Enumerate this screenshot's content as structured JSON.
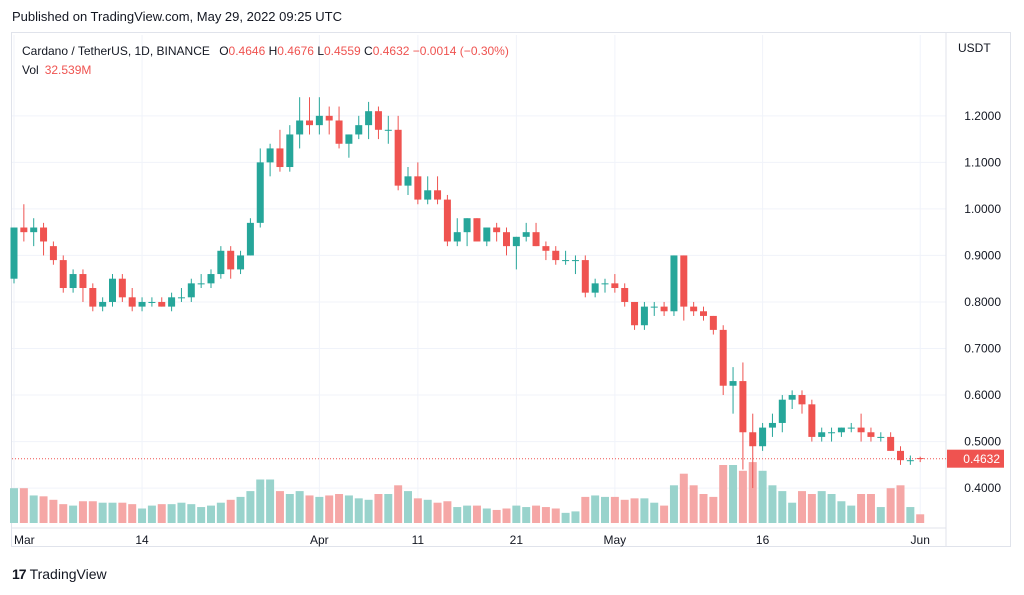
{
  "header": {
    "published": "Published on TradingView.com, May 29, 2022 09:25 UTC"
  },
  "legend": {
    "symbol": "Cardano / TetherUS, 1D, BINANCE",
    "o_label": "O",
    "o_value": "0.4646",
    "h_label": "H",
    "h_value": "0.4676",
    "l_label": "L",
    "l_value": "0.4559",
    "c_label": "C",
    "c_value": "0.4632",
    "change": "−0.0014 (−0.30%)",
    "vol_label": "Vol",
    "vol_value": "32.539M"
  },
  "footer": {
    "brand": "TradingView",
    "logo_text": "17"
  },
  "colors": {
    "up": "#26a69a",
    "down": "#ef5350",
    "vol_up": "#99d3cc",
    "vol_down": "#f5a7a6",
    "grid": "#f0f3fa",
    "last_price_bg": "#ef5350"
  },
  "chart_data": {
    "type": "candlestick",
    "title": "Cardano / TetherUS, 1D, BINANCE",
    "ylabel": "USDT",
    "y_ticks": [
      "0.4000",
      "0.5000",
      "0.6000",
      "0.7000",
      "0.8000",
      "0.9000",
      "1.0000",
      "1.1000",
      "1.2000"
    ],
    "ylim": [
      0.325,
      1.32
    ],
    "x_ticks": [
      {
        "label": "Mar",
        "date": "2022-03-01"
      },
      {
        "label": "14",
        "date": "2022-03-14"
      },
      {
        "label": "Apr",
        "date": "2022-04-01"
      },
      {
        "label": "11",
        "date": "2022-04-11"
      },
      {
        "label": "21",
        "date": "2022-04-21"
      },
      {
        "label": "May",
        "date": "2022-05-01"
      },
      {
        "label": "16",
        "date": "2022-05-16"
      },
      {
        "label": "Jun",
        "date": "2022-06-01"
      }
    ],
    "last_price": "0.4632",
    "start_date": "2022-03-01",
    "candles": [
      [
        0.85,
        0.96,
        0.84,
        0.96,
        1.2
      ],
      [
        0.96,
        1.01,
        0.93,
        0.95,
        1.2
      ],
      [
        0.95,
        0.98,
        0.92,
        0.96,
        0.95
      ],
      [
        0.96,
        0.97,
        0.9,
        0.93,
        0.92
      ],
      [
        0.92,
        0.93,
        0.88,
        0.89,
        0.8
      ],
      [
        0.89,
        0.9,
        0.82,
        0.83,
        0.65
      ],
      [
        0.83,
        0.87,
        0.82,
        0.86,
        0.6
      ],
      [
        0.86,
        0.87,
        0.8,
        0.83,
        0.75
      ],
      [
        0.83,
        0.84,
        0.78,
        0.79,
        0.75
      ],
      [
        0.79,
        0.81,
        0.78,
        0.8,
        0.7
      ],
      [
        0.8,
        0.86,
        0.79,
        0.85,
        0.7
      ],
      [
        0.85,
        0.86,
        0.8,
        0.81,
        0.7
      ],
      [
        0.81,
        0.83,
        0.78,
        0.79,
        0.65
      ],
      [
        0.79,
        0.81,
        0.78,
        0.8,
        0.5
      ],
      [
        0.8,
        0.81,
        0.79,
        0.8,
        0.6
      ],
      [
        0.8,
        0.81,
        0.79,
        0.79,
        0.65
      ],
      [
        0.79,
        0.82,
        0.78,
        0.81,
        0.65
      ],
      [
        0.81,
        0.83,
        0.8,
        0.81,
        0.7
      ],
      [
        0.81,
        0.85,
        0.8,
        0.84,
        0.65
      ],
      [
        0.84,
        0.86,
        0.83,
        0.84,
        0.55
      ],
      [
        0.84,
        0.87,
        0.83,
        0.86,
        0.6
      ],
      [
        0.86,
        0.92,
        0.85,
        0.91,
        0.7
      ],
      [
        0.91,
        0.92,
        0.85,
        0.87,
        0.8
      ],
      [
        0.87,
        0.91,
        0.86,
        0.9,
        0.9
      ],
      [
        0.9,
        0.98,
        0.9,
        0.97,
        1.1
      ],
      [
        0.97,
        1.13,
        0.96,
        1.1,
        1.5
      ],
      [
        1.1,
        1.14,
        1.07,
        1.13,
        1.5
      ],
      [
        1.13,
        1.17,
        1.08,
        1.09,
        1.1
      ],
      [
        1.09,
        1.18,
        1.08,
        1.16,
        1.0
      ],
      [
        1.16,
        1.24,
        1.13,
        1.19,
        1.1
      ],
      [
        1.19,
        1.24,
        1.16,
        1.18,
        0.95
      ],
      [
        1.18,
        1.24,
        1.16,
        1.2,
        0.9
      ],
      [
        1.2,
        1.22,
        1.16,
        1.19,
        0.95
      ],
      [
        1.19,
        1.22,
        1.13,
        1.14,
        1.0
      ],
      [
        1.14,
        1.16,
        1.11,
        1.16,
        0.95
      ],
      [
        1.16,
        1.2,
        1.15,
        1.18,
        0.85
      ],
      [
        1.18,
        1.23,
        1.15,
        1.21,
        0.8
      ],
      [
        1.21,
        1.22,
        1.15,
        1.17,
        1.0
      ],
      [
        1.17,
        1.2,
        1.14,
        1.17,
        1.0
      ],
      [
        1.17,
        1.2,
        1.04,
        1.05,
        1.3
      ],
      [
        1.05,
        1.09,
        1.03,
        1.07,
        1.1
      ],
      [
        1.07,
        1.1,
        1.01,
        1.02,
        0.85
      ],
      [
        1.02,
        1.07,
        1.01,
        1.04,
        0.8
      ],
      [
        1.04,
        1.07,
        1.01,
        1.02,
        0.7
      ],
      [
        1.02,
        1.03,
        0.92,
        0.93,
        0.75
      ],
      [
        0.93,
        0.98,
        0.92,
        0.95,
        0.55
      ],
      [
        0.95,
        0.98,
        0.92,
        0.98,
        0.6
      ],
      [
        0.98,
        0.98,
        0.93,
        0.93,
        0.6
      ],
      [
        0.93,
        0.96,
        0.92,
        0.96,
        0.5
      ],
      [
        0.96,
        0.97,
        0.93,
        0.95,
        0.45
      ],
      [
        0.95,
        0.96,
        0.9,
        0.92,
        0.5
      ],
      [
        0.92,
        0.94,
        0.87,
        0.94,
        0.6
      ],
      [
        0.94,
        0.97,
        0.93,
        0.95,
        0.55
      ],
      [
        0.95,
        0.97,
        0.92,
        0.92,
        0.6
      ],
      [
        0.92,
        0.93,
        0.89,
        0.91,
        0.55
      ],
      [
        0.91,
        0.92,
        0.88,
        0.89,
        0.5
      ],
      [
        0.89,
        0.91,
        0.88,
        0.89,
        0.35
      ],
      [
        0.89,
        0.9,
        0.86,
        0.89,
        0.4
      ],
      [
        0.89,
        0.9,
        0.81,
        0.82,
        0.9
      ],
      [
        0.82,
        0.85,
        0.81,
        0.84,
        0.95
      ],
      [
        0.84,
        0.85,
        0.82,
        0.84,
        0.9
      ],
      [
        0.84,
        0.86,
        0.82,
        0.83,
        0.9
      ],
      [
        0.83,
        0.84,
        0.79,
        0.8,
        0.8
      ],
      [
        0.8,
        0.8,
        0.74,
        0.75,
        0.85
      ],
      [
        0.75,
        0.8,
        0.74,
        0.79,
        0.85
      ],
      [
        0.79,
        0.8,
        0.77,
        0.79,
        0.7
      ],
      [
        0.79,
        0.8,
        0.77,
        0.78,
        0.6
      ],
      [
        0.78,
        0.9,
        0.77,
        0.9,
        1.3
      ],
      [
        0.9,
        0.9,
        0.76,
        0.79,
        1.7
      ],
      [
        0.79,
        0.8,
        0.77,
        0.78,
        1.3
      ],
      [
        0.78,
        0.79,
        0.76,
        0.77,
        1.0
      ],
      [
        0.77,
        0.77,
        0.73,
        0.74,
        0.9
      ],
      [
        0.74,
        0.75,
        0.6,
        0.62,
        2.0
      ],
      [
        0.62,
        0.66,
        0.56,
        0.63,
        2.0
      ],
      [
        0.63,
        0.67,
        0.44,
        0.52,
        1.8
      ],
      [
        0.52,
        0.56,
        0.4,
        0.49,
        2.1
      ],
      [
        0.49,
        0.54,
        0.48,
        0.53,
        1.8
      ],
      [
        0.53,
        0.56,
        0.51,
        0.54,
        1.3
      ],
      [
        0.54,
        0.6,
        0.52,
        0.59,
        1.1
      ],
      [
        0.59,
        0.61,
        0.57,
        0.6,
        0.7
      ],
      [
        0.6,
        0.61,
        0.56,
        0.58,
        1.1
      ],
      [
        0.58,
        0.59,
        0.5,
        0.51,
        1.0
      ],
      [
        0.51,
        0.53,
        0.5,
        0.52,
        1.1
      ],
      [
        0.52,
        0.53,
        0.5,
        0.52,
        1.0
      ],
      [
        0.52,
        0.53,
        0.51,
        0.53,
        0.75
      ],
      [
        0.53,
        0.54,
        0.52,
        0.53,
        0.6
      ],
      [
        0.53,
        0.56,
        0.5,
        0.52,
        1.0
      ],
      [
        0.52,
        0.53,
        0.5,
        0.51,
        1.0
      ],
      [
        0.51,
        0.52,
        0.5,
        0.51,
        0.55
      ],
      [
        0.51,
        0.52,
        0.48,
        0.48,
        1.2
      ],
      [
        0.48,
        0.49,
        0.45,
        0.46,
        1.3
      ],
      [
        0.46,
        0.47,
        0.45,
        0.46,
        0.55
      ],
      [
        0.4646,
        0.4676,
        0.4559,
        0.4632,
        0.3
      ]
    ]
  }
}
